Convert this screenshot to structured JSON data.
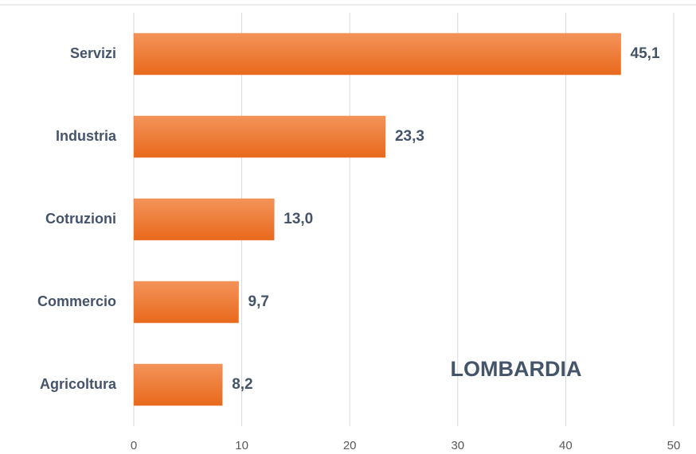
{
  "chart_data": {
    "type": "bar",
    "orientation": "horizontal",
    "categories": [
      "Servizi",
      "Industria",
      "Cotruzioni",
      "Commercio",
      "Agricoltura"
    ],
    "values": [
      45.1,
      23.3,
      13.0,
      9.7,
      8.2
    ],
    "value_labels": [
      "45,1",
      "23,3",
      "13,0",
      "9,7",
      "8,2"
    ],
    "color": "#ed7d31",
    "xlim": [
      0,
      50
    ],
    "xticks": [
      0,
      10,
      20,
      30,
      40,
      50
    ],
    "grid": true,
    "annotation": "LOMBARDIA"
  }
}
